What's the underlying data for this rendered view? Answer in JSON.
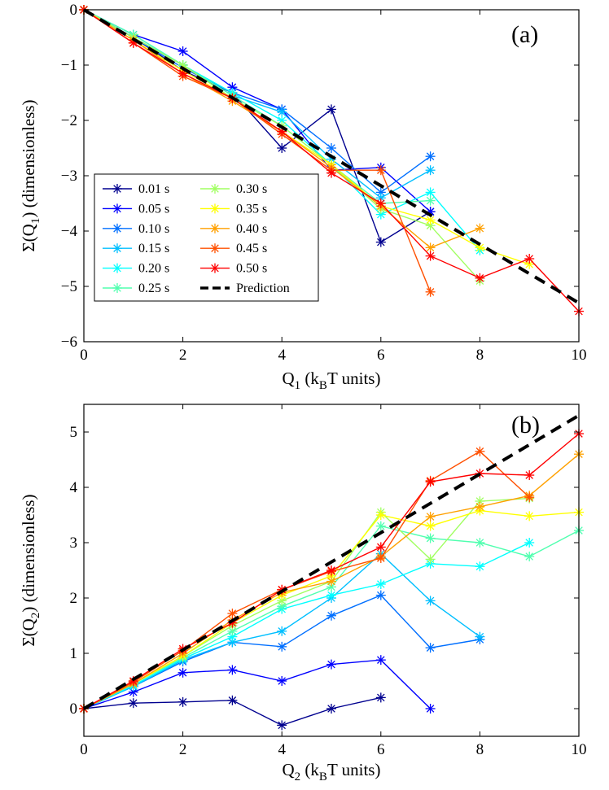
{
  "chart_data": [
    {
      "type": "line",
      "panel_label": "(a)",
      "xlabel_main": "Q",
      "xlabel_sub": "1",
      "xlabel_rest": " (k",
      "xlabel_sub2": "B",
      "xlabel_end": "T units)",
      "ylabel_main": "Σ(Q",
      "ylabel_sub": "1",
      "ylabel_end": ") (dimensionless)",
      "xlim": [
        0,
        10
      ],
      "ylim": [
        -6,
        0
      ],
      "xticks": [
        0,
        2,
        4,
        6,
        8,
        10
      ],
      "yticks": [
        0,
        -1,
        -2,
        -3,
        -4,
        -5,
        -6
      ],
      "grid": false,
      "legend_position": "lower-left",
      "prediction": {
        "name": "Prediction",
        "x": [
          0,
          10
        ],
        "y": [
          0,
          -5.3
        ]
      },
      "series": [
        {
          "name": "0.01 s",
          "color": "#00008F",
          "x": [
            0,
            1,
            2,
            3,
            4,
            5,
            6,
            7
          ],
          "y": [
            0,
            -0.5,
            -1.1,
            -1.5,
            -2.5,
            -1.8,
            -4.2,
            -3.65
          ]
        },
        {
          "name": "0.05 s",
          "color": "#0000FF",
          "x": [
            0,
            1,
            2,
            3,
            4,
            5,
            6,
            7
          ],
          "y": [
            0,
            -0.45,
            -0.75,
            -1.4,
            -1.8,
            -2.9,
            -2.85,
            -3.65
          ]
        },
        {
          "name": "0.10 s",
          "color": "#006FFF",
          "x": [
            0,
            1,
            2,
            3,
            4,
            5,
            6,
            7
          ],
          "y": [
            0,
            -0.5,
            -1.05,
            -1.5,
            -1.8,
            -2.5,
            -3.3,
            -2.65
          ]
        },
        {
          "name": "0.15 s",
          "color": "#00BFFF",
          "x": [
            0,
            1,
            2,
            3,
            4,
            5,
            6,
            7
          ],
          "y": [
            0,
            -0.5,
            -1.0,
            -1.55,
            -1.85,
            -2.7,
            -3.4,
            -2.9
          ]
        },
        {
          "name": "0.20 s",
          "color": "#00FFFF",
          "x": [
            0,
            1,
            2,
            3,
            4,
            5,
            6,
            7,
            8
          ],
          "y": [
            0,
            -0.45,
            -1.0,
            -1.5,
            -2.0,
            -2.8,
            -3.7,
            -3.3,
            -4.35
          ]
        },
        {
          "name": "0.25 s",
          "color": "#50FFAF",
          "x": [
            0,
            1,
            2,
            3,
            4,
            5,
            6,
            7
          ],
          "y": [
            0,
            -0.45,
            -1.0,
            -1.55,
            -2.1,
            -2.8,
            -3.5,
            -3.45
          ]
        },
        {
          "name": "0.30 s",
          "color": "#A0FF60",
          "x": [
            0,
            1,
            2,
            3,
            4,
            5,
            6,
            7,
            8
          ],
          "y": [
            0,
            -0.5,
            -1.0,
            -1.6,
            -2.1,
            -2.8,
            -3.6,
            -3.9,
            -4.9
          ]
        },
        {
          "name": "0.35 s",
          "color": "#FFFF00",
          "x": [
            0,
            1,
            2,
            3,
            4,
            5,
            6,
            7,
            8,
            9
          ],
          "y": [
            0,
            -0.55,
            -1.1,
            -1.6,
            -2.2,
            -2.8,
            -3.55,
            -3.8,
            -4.3,
            -4.6
          ]
        },
        {
          "name": "0.40 s",
          "color": "#FFA000",
          "x": [
            0,
            1,
            2,
            3,
            4,
            5,
            6,
            7,
            8
          ],
          "y": [
            0,
            -0.55,
            -1.15,
            -1.65,
            -2.2,
            -2.85,
            -3.55,
            -4.3,
            -3.95
          ]
        },
        {
          "name": "0.45 s",
          "color": "#FF5000",
          "x": [
            0,
            1,
            2,
            3,
            4,
            5,
            6,
            7
          ],
          "y": [
            0,
            -0.6,
            -1.2,
            -1.6,
            -2.25,
            -2.9,
            -2.9,
            -5.1
          ]
        },
        {
          "name": "0.50 s",
          "color": "#FF0000",
          "x": [
            0,
            1,
            2,
            3,
            4,
            5,
            6,
            7,
            8,
            9,
            10
          ],
          "y": [
            0,
            -0.6,
            -1.15,
            -1.6,
            -2.2,
            -2.95,
            -3.5,
            -4.45,
            -4.85,
            -4.5,
            -5.45
          ]
        }
      ]
    },
    {
      "type": "line",
      "panel_label": "(b)",
      "xlabel_main": "Q",
      "xlabel_sub": "2",
      "xlabel_rest": " (k",
      "xlabel_sub2": "B",
      "xlabel_end": "T units)",
      "ylabel_main": "Σ(Q",
      "ylabel_sub": "2",
      "ylabel_end": ") (dimensionless)",
      "xlim": [
        0,
        10
      ],
      "ylim": [
        -0.5,
        5.5
      ],
      "xticks": [
        0,
        2,
        4,
        6,
        8,
        10
      ],
      "yticks": [
        0,
        1,
        2,
        3,
        4,
        5
      ],
      "grid": false,
      "prediction": {
        "name": "Prediction",
        "x": [
          0,
          10
        ],
        "y": [
          0,
          5.3
        ]
      },
      "series": [
        {
          "name": "0.01 s",
          "color": "#00008F",
          "x": [
            0,
            1,
            2,
            3,
            4,
            5,
            6
          ],
          "y": [
            0,
            0.1,
            0.12,
            0.15,
            -0.3,
            0,
            0.2
          ]
        },
        {
          "name": "0.05 s",
          "color": "#0000FF",
          "x": [
            0,
            1,
            2,
            3,
            4,
            5,
            6,
            7
          ],
          "y": [
            0,
            0.3,
            0.65,
            0.7,
            0.5,
            0.8,
            0.88,
            0
          ]
        },
        {
          "name": "0.10 s",
          "color": "#006FFF",
          "x": [
            0,
            1,
            2,
            3,
            4,
            5,
            6,
            7,
            8
          ],
          "y": [
            0,
            0.4,
            0.85,
            1.2,
            1.12,
            1.68,
            2.05,
            1.1,
            1.25
          ]
        },
        {
          "name": "0.15 s",
          "color": "#00BFFF",
          "x": [
            0,
            1,
            2,
            3,
            4,
            5,
            6,
            7,
            8
          ],
          "y": [
            0,
            0.4,
            0.88,
            1.2,
            1.4,
            2.0,
            2.8,
            1.95,
            1.3
          ]
        },
        {
          "name": "0.20 s",
          "color": "#00FFFF",
          "x": [
            0,
            1,
            2,
            3,
            4,
            5,
            6,
            7,
            8,
            9
          ],
          "y": [
            0,
            0.42,
            0.9,
            1.3,
            1.8,
            2.05,
            2.25,
            2.62,
            2.57,
            3.0
          ]
        },
        {
          "name": "0.25 s",
          "color": "#50FFAF",
          "x": [
            0,
            1,
            2,
            3,
            4,
            5,
            6,
            7,
            8,
            9,
            10
          ],
          "y": [
            0,
            0.45,
            0.92,
            1.4,
            1.85,
            2.2,
            3.3,
            3.08,
            3.0,
            2.75,
            3.22
          ]
        },
        {
          "name": "0.30 s",
          "color": "#A0FF60",
          "x": [
            0,
            1,
            2,
            3,
            4,
            5,
            6,
            7,
            8,
            9
          ],
          "y": [
            0,
            0.45,
            0.95,
            1.5,
            1.95,
            2.3,
            3.55,
            2.7,
            3.75,
            3.8
          ]
        },
        {
          "name": "0.35 s",
          "color": "#FFFF00",
          "x": [
            0,
            1,
            2,
            3,
            4,
            5,
            6,
            7,
            8,
            9,
            10
          ],
          "y": [
            0,
            0.45,
            0.95,
            1.55,
            2.05,
            2.4,
            3.5,
            3.3,
            3.58,
            3.48,
            3.55
          ]
        },
        {
          "name": "0.40 s",
          "color": "#FFA000",
          "x": [
            0,
            1,
            2,
            3,
            4,
            5,
            6,
            7,
            8,
            9,
            10
          ],
          "y": [
            0,
            0.45,
            1.0,
            1.6,
            2.1,
            2.3,
            2.75,
            3.47,
            3.65,
            3.85,
            4.6
          ]
        },
        {
          "name": "0.45 s",
          "color": "#FF5000",
          "x": [
            0,
            1,
            2,
            3,
            4,
            5,
            6,
            7,
            8,
            9
          ],
          "y": [
            0,
            0.48,
            1.05,
            1.72,
            2.15,
            2.48,
            2.72,
            4.12,
            4.65,
            3.82
          ]
        },
        {
          "name": "0.50 s",
          "color": "#FF0000",
          "x": [
            0,
            1,
            2,
            3,
            4,
            5,
            6,
            7,
            8,
            9,
            10
          ],
          "y": [
            0,
            0.5,
            1.08,
            1.55,
            2.15,
            2.5,
            2.92,
            4.1,
            4.25,
            4.22,
            4.97
          ]
        }
      ]
    }
  ]
}
